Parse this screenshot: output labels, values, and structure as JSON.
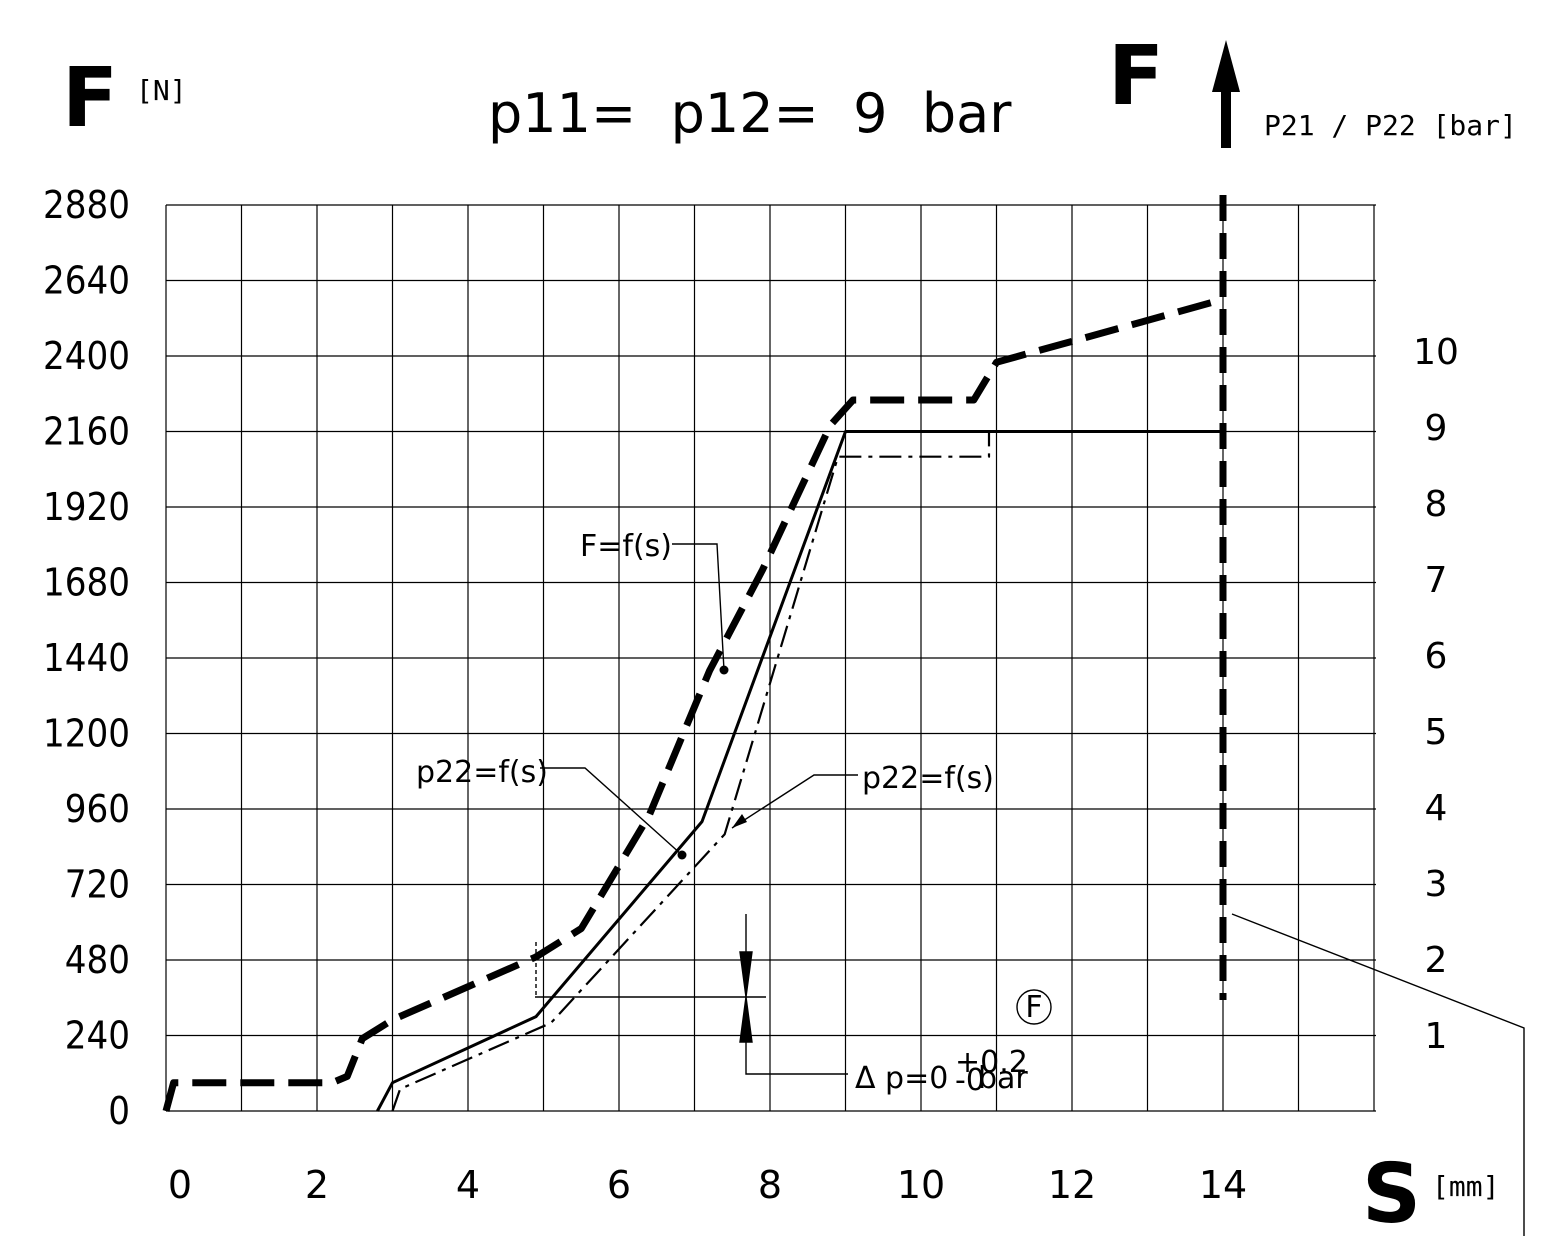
{
  "chart_data": {
    "type": "line",
    "title": "p11=  p12=  9  bar",
    "y_axis_left": {
      "label": "F",
      "unit": "[N]",
      "ticks": [
        "2880",
        "2640",
        "2400",
        "2160",
        "1920",
        "1680",
        "1440",
        "1200",
        "960",
        "720",
        "480",
        "240",
        "0"
      ],
      "range": [
        0,
        2880
      ]
    },
    "y_axis_right": {
      "label": "F",
      "unit": "P21 / P22 [bar]",
      "ticks": [
        "10",
        "9",
        "8",
        "7",
        "6",
        "5",
        "4",
        "3",
        "2",
        "1"
      ],
      "range": [
        0,
        11.4
      ]
    },
    "x_axis": {
      "label": "S",
      "unit": "[mm]",
      "ticks": [
        "0",
        "2",
        "4",
        "6",
        "8",
        "10",
        "12",
        "14"
      ],
      "range": [
        0,
        16
      ]
    },
    "grid": true,
    "series": [
      {
        "style": "heavy-dashed",
        "x": [
          0,
          0.1,
          2.2,
          2.4,
          2.6,
          3.0,
          4.9,
          5.5,
          6.4,
          7.2,
          7.9,
          8.8,
          9.1,
          10.7,
          11.0,
          14.0
        ],
        "y": [
          0,
          90,
          90,
          110,
          230,
          290,
          490,
          580,
          940,
          1400,
          1720,
          2180,
          2260,
          2260,
          2380,
          2580
        ]
      },
      {
        "name": "p22=f(s)",
        "style": "solid",
        "x": [
          2.8,
          3.0,
          4.9,
          7.1,
          9.0,
          14.0
        ],
        "y": [
          0,
          90,
          300,
          920,
          2160,
          2160
        ]
      },
      {
        "name": "p22=f(s)",
        "style": "dash-dot",
        "x": [
          3.0,
          3.1,
          5.1,
          7.4,
          8.9,
          10.9,
          10.9
        ],
        "y": [
          0,
          70,
          280,
          880,
          2080,
          2080,
          2160
        ]
      }
    ],
    "annotations": [
      {
        "text": "F=f(s)",
        "x": 7.3,
        "y": 1410
      },
      {
        "text": "p22=f(s)",
        "x": 6.8,
        "y": 800
      },
      {
        "text": "p22=f(s)",
        "x": 7.5,
        "y": 860
      },
      {
        "text": "Δ p=0",
        "sup": "+0.2",
        "sub": "-0",
        "suffix": "bar"
      },
      {
        "text": "F",
        "circled": true
      }
    ],
    "vertical_marker": {
      "x": 14.0,
      "style": "heavy-dashed"
    }
  }
}
